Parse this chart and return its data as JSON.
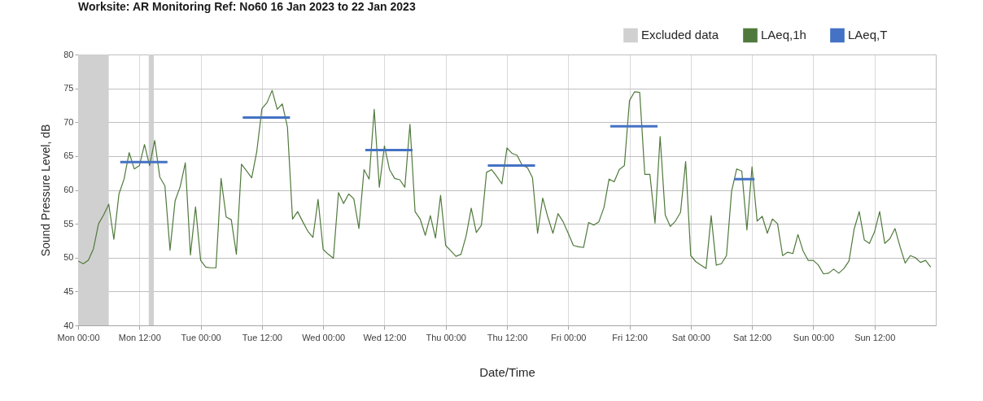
{
  "chart_data": {
    "type": "line",
    "title": "Worksite: AR   Monitoring Ref: No60     16 Jan 2023 to 22 Jan 2023",
    "xlabel": "Date/Time",
    "ylabel": "Sound Pressure Level, dB",
    "x": [
      "2023-01-16T00:00",
      "2023-01-16T01:00",
      "2023-01-16T02:00",
      "2023-01-16T03:00",
      "2023-01-16T04:00",
      "2023-01-16T05:00",
      "2023-01-16T06:00",
      "2023-01-16T07:00",
      "2023-01-16T08:00",
      "2023-01-16T09:00",
      "2023-01-16T10:00",
      "2023-01-16T11:00",
      "2023-01-16T12:00",
      "2023-01-16T13:00",
      "2023-01-16T14:00",
      "2023-01-16T15:00",
      "2023-01-16T16:00",
      "2023-01-16T17:00",
      "2023-01-16T18:00",
      "2023-01-16T19:00",
      "2023-01-16T20:00",
      "2023-01-16T21:00",
      "2023-01-16T22:00",
      "2023-01-16T23:00",
      "2023-01-17T00:00",
      "2023-01-17T01:00",
      "2023-01-17T02:00",
      "2023-01-17T03:00",
      "2023-01-17T04:00",
      "2023-01-17T05:00",
      "2023-01-17T06:00",
      "2023-01-17T07:00",
      "2023-01-17T08:00",
      "2023-01-17T09:00",
      "2023-01-17T10:00",
      "2023-01-17T11:00",
      "2023-01-17T12:00",
      "2023-01-17T13:00",
      "2023-01-17T14:00",
      "2023-01-17T15:00",
      "2023-01-17T16:00",
      "2023-01-17T17:00",
      "2023-01-17T18:00",
      "2023-01-17T19:00",
      "2023-01-17T20:00",
      "2023-01-17T21:00",
      "2023-01-17T22:00",
      "2023-01-17T23:00",
      "2023-01-18T00:00",
      "2023-01-18T01:00",
      "2023-01-18T02:00",
      "2023-01-18T03:00",
      "2023-01-18T04:00",
      "2023-01-18T05:00",
      "2023-01-18T06:00",
      "2023-01-18T07:00",
      "2023-01-18T08:00",
      "2023-01-18T09:00",
      "2023-01-18T10:00",
      "2023-01-18T11:00",
      "2023-01-18T12:00",
      "2023-01-18T13:00",
      "2023-01-18T14:00",
      "2023-01-18T15:00",
      "2023-01-18T16:00",
      "2023-01-18T17:00",
      "2023-01-18T18:00",
      "2023-01-18T19:00",
      "2023-01-18T20:00",
      "2023-01-18T21:00",
      "2023-01-18T22:00",
      "2023-01-18T23:00",
      "2023-01-19T00:00",
      "2023-01-19T01:00",
      "2023-01-19T02:00",
      "2023-01-19T03:00",
      "2023-01-19T04:00",
      "2023-01-19T05:00",
      "2023-01-19T06:00",
      "2023-01-19T07:00",
      "2023-01-19T08:00",
      "2023-01-19T09:00",
      "2023-01-19T10:00",
      "2023-01-19T11:00",
      "2023-01-19T12:00",
      "2023-01-19T13:00",
      "2023-01-19T14:00",
      "2023-01-19T15:00",
      "2023-01-19T16:00",
      "2023-01-19T17:00",
      "2023-01-19T18:00",
      "2023-01-19T19:00",
      "2023-01-19T20:00",
      "2023-01-19T21:00",
      "2023-01-19T22:00",
      "2023-01-19T23:00",
      "2023-01-20T00:00",
      "2023-01-20T01:00",
      "2023-01-20T02:00",
      "2023-01-20T03:00",
      "2023-01-20T04:00",
      "2023-01-20T05:00",
      "2023-01-20T06:00",
      "2023-01-20T07:00",
      "2023-01-20T08:00",
      "2023-01-20T09:00",
      "2023-01-20T10:00",
      "2023-01-20T11:00",
      "2023-01-20T12:00",
      "2023-01-20T13:00",
      "2023-01-20T14:00",
      "2023-01-20T15:00",
      "2023-01-20T16:00",
      "2023-01-20T17:00",
      "2023-01-20T18:00",
      "2023-01-20T19:00",
      "2023-01-20T20:00",
      "2023-01-20T21:00",
      "2023-01-20T22:00",
      "2023-01-20T23:00",
      "2023-01-21T00:00",
      "2023-01-21T01:00",
      "2023-01-21T02:00",
      "2023-01-21T03:00",
      "2023-01-21T04:00",
      "2023-01-21T05:00",
      "2023-01-21T06:00",
      "2023-01-21T07:00",
      "2023-01-21T08:00",
      "2023-01-21T09:00",
      "2023-01-21T10:00",
      "2023-01-21T11:00",
      "2023-01-21T12:00",
      "2023-01-21T13:00",
      "2023-01-21T14:00",
      "2023-01-21T15:00",
      "2023-01-21T16:00",
      "2023-01-21T17:00",
      "2023-01-21T18:00",
      "2023-01-21T19:00",
      "2023-01-21T20:00",
      "2023-01-21T21:00",
      "2023-01-21T22:00",
      "2023-01-21T23:00",
      "2023-01-22T00:00",
      "2023-01-22T01:00",
      "2023-01-22T02:00",
      "2023-01-22T03:00",
      "2023-01-22T04:00",
      "2023-01-22T05:00",
      "2023-01-22T06:00",
      "2023-01-22T07:00",
      "2023-01-22T08:00",
      "2023-01-22T09:00",
      "2023-01-22T10:00",
      "2023-01-22T11:00",
      "2023-01-22T12:00",
      "2023-01-22T13:00",
      "2023-01-22T14:00",
      "2023-01-22T15:00",
      "2023-01-22T16:00",
      "2023-01-22T17:00",
      "2023-01-22T18:00",
      "2023-01-22T19:00",
      "2023-01-22T20:00",
      "2023-01-22T21:00",
      "2023-01-22T22:00",
      "2023-01-22T23:00"
    ],
    "series": [
      {
        "name": "LAeq,1h",
        "color": "#507a3c",
        "values": [
          49.5,
          49.1,
          49.6,
          51.3,
          55.0,
          56.3,
          57.9,
          52.7,
          59.4,
          61.6,
          65.5,
          63.1,
          63.6,
          66.7,
          63.6,
          67.3,
          61.9,
          60.6,
          51.1,
          58.4,
          60.5,
          64.0,
          50.4,
          57.5,
          49.6,
          48.6,
          48.5,
          48.5,
          61.7,
          56.0,
          55.6,
          50.5,
          63.8,
          62.8,
          61.8,
          65.7,
          72.0,
          72.9,
          74.7,
          71.9,
          72.7,
          69.3,
          55.7,
          56.8,
          55.3,
          53.9,
          53.0,
          58.6,
          51.2,
          50.5,
          49.9,
          59.6,
          58.0,
          59.4,
          58.7,
          54.3,
          63.0,
          61.6,
          71.9,
          60.4,
          66.5,
          63.0,
          61.7,
          61.5,
          60.4,
          69.7,
          56.8,
          55.7,
          53.3,
          56.2,
          52.9,
          59.2,
          51.8,
          51.0,
          50.2,
          50.5,
          53.2,
          57.3,
          53.7,
          54.8,
          62.6,
          63.0,
          62.0,
          60.9,
          66.2,
          65.4,
          65.1,
          63.6,
          63.3,
          61.8,
          53.6,
          58.8,
          56.0,
          53.6,
          56.5,
          55.3,
          53.6,
          51.8,
          51.6,
          51.5,
          55.2,
          54.8,
          55.3,
          57.4,
          61.6,
          61.2,
          63.0,
          63.6,
          73.2,
          74.5,
          74.4,
          62.3,
          62.3,
          55.1,
          67.9,
          56.3,
          54.6,
          55.4,
          56.7,
          64.2,
          50.3,
          49.4,
          48.9,
          48.4,
          56.2,
          48.9,
          49.1,
          50.3,
          59.8,
          63.1,
          62.8,
          54.1,
          63.4,
          55.4,
          56.1,
          53.6,
          55.7,
          55.0,
          50.3,
          50.8,
          50.6,
          53.4,
          51.0,
          49.6,
          49.6,
          48.9,
          47.6,
          47.7,
          48.3,
          47.7,
          48.4,
          49.5,
          54.2,
          56.8,
          52.6,
          52.1,
          53.8,
          56.8,
          52.1,
          52.8,
          54.3,
          51.6,
          49.2,
          50.3,
          50.0,
          49.3,
          49.6,
          48.6
        ]
      },
      {
        "name": "LAeq,T",
        "color": "#4472c4",
        "x": [
          "2023-01-16T08:15",
          "2023-01-16T17:30",
          null,
          "2023-01-17T08:15",
          "2023-01-17T17:30",
          null,
          "2023-01-18T08:15",
          "2023-01-18T17:30",
          null,
          "2023-01-19T08:15",
          "2023-01-19T17:30",
          null,
          "2023-01-20T08:15",
          "2023-01-20T17:30",
          null,
          "2023-01-21T08:30",
          "2023-01-21T12:30"
        ],
        "values": [
          64.1,
          64.1,
          null,
          70.7,
          70.7,
          null,
          65.9,
          65.9,
          null,
          63.6,
          63.6,
          null,
          69.4,
          69.4,
          null,
          61.6,
          61.6
        ]
      }
    ],
    "bands": [
      {
        "axis": "x",
        "from": "2023-01-16T00:00",
        "to": "2023-01-16T06:00",
        "label": "Excluded data",
        "color": "#d0d0d0"
      },
      {
        "axis": "x",
        "from": "2023-01-16T13:50",
        "to": "2023-01-16T14:50",
        "color": "#d0d0d0"
      }
    ],
    "xlim": [
      "2023-01-16T00:00",
      "2023-01-23T00:00"
    ],
    "xticks": [
      {
        "value": "2023-01-16T00:00",
        "label": "Mon 00:00"
      },
      {
        "value": "2023-01-16T12:00",
        "label": "Mon 12:00"
      },
      {
        "value": "2023-01-17T00:00",
        "label": "Tue 00:00"
      },
      {
        "value": "2023-01-17T12:00",
        "label": "Tue 12:00"
      },
      {
        "value": "2023-01-18T00:00",
        "label": "Wed 00:00"
      },
      {
        "value": "2023-01-18T12:00",
        "label": "Wed 12:00"
      },
      {
        "value": "2023-01-19T00:00",
        "label": "Thu 00:00"
      },
      {
        "value": "2023-01-19T12:00",
        "label": "Thu 12:00"
      },
      {
        "value": "2023-01-20T00:00",
        "label": "Fri 00:00"
      },
      {
        "value": "2023-01-20T12:00",
        "label": "Fri 12:00"
      },
      {
        "value": "2023-01-21T00:00",
        "label": "Sat 00:00"
      },
      {
        "value": "2023-01-21T12:00",
        "label": "Sat 12:00"
      },
      {
        "value": "2023-01-22T00:00",
        "label": "Sun 00:00"
      },
      {
        "value": "2023-01-22T12:00",
        "label": "Sun 12:00"
      }
    ],
    "ylim": [
      40,
      80
    ],
    "yticks": [
      40,
      45,
      50,
      55,
      60,
      65,
      70,
      75,
      80
    ],
    "grid": true,
    "legend": "top right",
    "line_style": "solid"
  }
}
